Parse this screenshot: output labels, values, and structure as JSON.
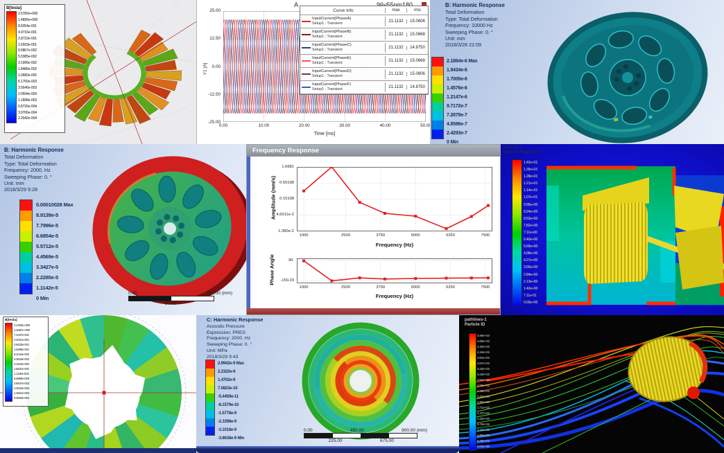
{
  "panels": {
    "maxwell_torus": {
      "colorbar_title": "B[tesla]",
      "values": [
        "2.5782e+000",
        "1.4895e+000",
        "8.6054e-001",
        "4.9716e-001",
        "2.8722e-001",
        "1.6593e-001",
        "9.5867e-002",
        "5.5385e-002",
        "3.1996e-002",
        "1.8486e-002",
        "1.0680e-002",
        "6.1700e-003",
        "3.5646e-003",
        "2.0594e-003",
        "1.1898e-003",
        "6.8726e-004",
        "3.9706e-004",
        "2.2942e-004"
      ]
    },
    "harmonic_10000": {
      "title": "B: Harmonic Response",
      "lines": [
        "Total Deformation",
        "Type: Total Deformation",
        "Frequency: 10000 Hz",
        "Sweeping Phase: 0. °",
        "Unit: mm",
        "2018/3/28 22:09"
      ],
      "colorbar": [
        "2.1864e-6 Max",
        "1.9434e-6",
        "1.7005e-6",
        "1.4576e-6",
        "1.2147e-6",
        "9.7172e-7",
        "7.2879e-7",
        "4.8586e-7",
        "2.4293e-7",
        "0 Min"
      ]
    },
    "harmonic_2000": {
      "title": "B: Harmonic Response",
      "lines": [
        "Total Deformation",
        "Type: Total Deformation",
        "Frequency: 2000. Hz",
        "Sweeping Phase: 0. °",
        "Unit: mm",
        "2018/3/29 9:28"
      ],
      "colorbar": [
        "0.00010028 Max",
        "8.9139e-5",
        "7.7996e-5",
        "6.6854e-5",
        "5.5712e-5",
        "4.4569e-5",
        "3.3427e-5",
        "2.2285e-5",
        "1.1142e-5",
        "0 Min"
      ],
      "ruler": {
        "top": [
          "0.00",
          "100.00 (mm)"
        ],
        "bottom": [
          "50.00"
        ]
      }
    },
    "freq_window": {
      "title": "Frequency Response"
    },
    "cfd_velocity": {
      "label": [
        "contour-2",
        "Velocity Magnitude"
      ],
      "values": [
        "1.42e+01",
        "1.35e+01",
        "1.28e+01",
        "1.21e+01",
        "1.14e+01",
        "1.07e+01",
        "9.96e+00",
        "9.24e+00",
        "8.53e+00",
        "7.82e+00",
        "7.11e+00",
        "6.40e+00",
        "5.69e+00",
        "4.98e+00",
        "4.27e+00",
        "3.56e+00",
        "2.84e+00",
        "2.13e+00",
        "1.42e+00",
        "7.11e-01",
        "0.00e+00"
      ]
    },
    "maxwell_rotor": {
      "colorbar_title": "B[tesla]",
      "values": [
        "2.1283e+000",
        "1.2587e+000",
        "7.4437e-001",
        "4.4021e-001",
        "2.6033e-001",
        "1.5395e-001",
        "9.1044e-002",
        "5.3843e-002",
        "3.1842e-002",
        "1.8831e-002",
        "1.1136e-002",
        "6.5859e-003",
        "3.8947e-003",
        "2.3032e-003",
        "1.3621e-003",
        "8.0553e-004"
      ]
    },
    "acoustic": {
      "title": "C: Harmonic Response",
      "lines": [
        "Acoustic Pressure",
        "Expression: PRES",
        "Frequency: 2000. Hz",
        "Sweeping Phase: 0. °",
        "Unit: MPa",
        "2018/3/29 9:43"
      ],
      "colorbar": [
        "2.9942e-9 Max",
        "2.2322e-9",
        "1.4702e-9",
        "7.0823e-10",
        "-5.4459e-11",
        "-8.1579e-10",
        "-1.5778e-9",
        "-2.3398e-9",
        "-3.1018e-9",
        "-3.8638e-9 Min"
      ],
      "ruler": {
        "top": [
          "0.00",
          "450.00",
          "900.00 (mm)"
        ],
        "bottom": [
          "225.00",
          "675.00"
        ]
      }
    },
    "pathlines": {
      "label": [
        "pathlines-1",
        "Particle ID"
      ],
      "values": [
        "4.89e+03",
        "4.65e+03",
        "4.40e+03",
        "4.16e+03",
        "3.91e+03",
        "3.67e+03",
        "3.42e+03",
        "3.18e+03",
        "2.94e+03",
        "2.69e+03",
        "2.45e+03",
        "2.20e+03",
        "1.96e+03",
        "1.71e+03",
        "1.47e+03",
        "1.22e+03",
        "9.79e+02",
        "7.34e+02",
        "4.89e+02",
        "2.45e+02",
        "0.00e+00"
      ]
    }
  },
  "colors": {
    "ansys_bands": [
      "#ff1010",
      "#ff9a00",
      "#ffe000",
      "#c8f000",
      "#38d000",
      "#00d0a0",
      "#00c0e0",
      "#0080e8",
      "#0020f0"
    ],
    "curve_red": "#e02020"
  },
  "chart_data": [
    {
      "type": "line",
      "title": "A",
      "model_label": "96v55nm180",
      "xlabel": "Time [ms]",
      "ylabel": "Y1 [A]",
      "xlim": [
        0,
        50
      ],
      "ylim": [
        -25,
        25
      ],
      "xticks": [
        "0.00",
        "10.00",
        "20.00",
        "30.00",
        "40.00",
        "50.00"
      ],
      "yticks": [
        "25.00",
        "12.50",
        "0.00",
        "-12.50",
        "-25.00"
      ],
      "waveform": {
        "amplitude_A": 21.1132,
        "period_ms": 2.78,
        "phase_offsets_deg": [
          0,
          120,
          240,
          60,
          180,
          300
        ]
      },
      "legend": {
        "headers": [
          "Curve Info",
          "max",
          "rms"
        ],
        "rows": [
          {
            "name": "InputCurrent(PhaseA)",
            "setup": "Setup1 : Transient",
            "max": "21.1132",
            "rms": "15.0606",
            "color": "#e02828"
          },
          {
            "name": "InputCurrent(PhaseB)",
            "setup": "Setup1 : Transient",
            "max": "21.1132",
            "rms": "15.0668",
            "color": "#8b1818"
          },
          {
            "name": "InputCurrent(PhaseC)",
            "setup": "Setup1 : Transient",
            "max": "21.1132",
            "rms": "14.8750",
            "color": "#27408b"
          },
          {
            "name": "InputCurrent(PhaseE)",
            "setup": "Setup1 : Transient",
            "max": "21.1132",
            "rms": "15.0668",
            "color": "#ff5050"
          },
          {
            "name": "InputCurrent(PhaseD)",
            "setup": "Setup1 : Transient",
            "max": "21.1132",
            "rms": "15.0606",
            "color": "#7a3838"
          },
          {
            "name": "InputCurrent(PhaseF)",
            "setup": "Setup1 : Transient",
            "max": "21.1132",
            "rms": "14.8750",
            "color": "#3a5bd0"
          }
        ]
      }
    },
    {
      "type": "line",
      "window_title": "Frequency Response",
      "ylabel": "Amplitude (mm/s)",
      "xlabel": "Frequency (Hz)",
      "yscale": "log",
      "yticks": [
        "1.6681",
        "0.50198",
        "0.15108",
        "4.6011e-2",
        "1.390e-2"
      ],
      "xticks": [
        "1000",
        "2500",
        "3750",
        "5000",
        "6250",
        "7500"
      ],
      "xlim": [
        750,
        7750
      ],
      "x": [
        1000,
        2000,
        3000,
        3900,
        5000,
        6100,
        7000,
        7600
      ],
      "y": [
        0.28,
        1.6681,
        0.12,
        0.053,
        0.043,
        0.017,
        0.042,
        0.095
      ],
      "color": "#e02020"
    },
    {
      "type": "line",
      "ylabel": "Phase Angle",
      "xlabel": "Frequency (Hz)",
      "yticks": [
        "90.",
        "-150.29"
      ],
      "ytick_values": [
        90,
        -150.29
      ],
      "ylim": [
        -180,
        120
      ],
      "xticks": [
        "1000",
        "2500",
        "3750",
        "5000",
        "6250",
        "7500"
      ],
      "xlim": [
        750,
        7750
      ],
      "x": [
        1000,
        2000,
        3000,
        3900,
        5000,
        6100,
        7000,
        7600
      ],
      "y": [
        90,
        -150.29,
        -115,
        -128,
        -122,
        -118,
        -116,
        -115
      ],
      "color": "#e02020"
    }
  ]
}
